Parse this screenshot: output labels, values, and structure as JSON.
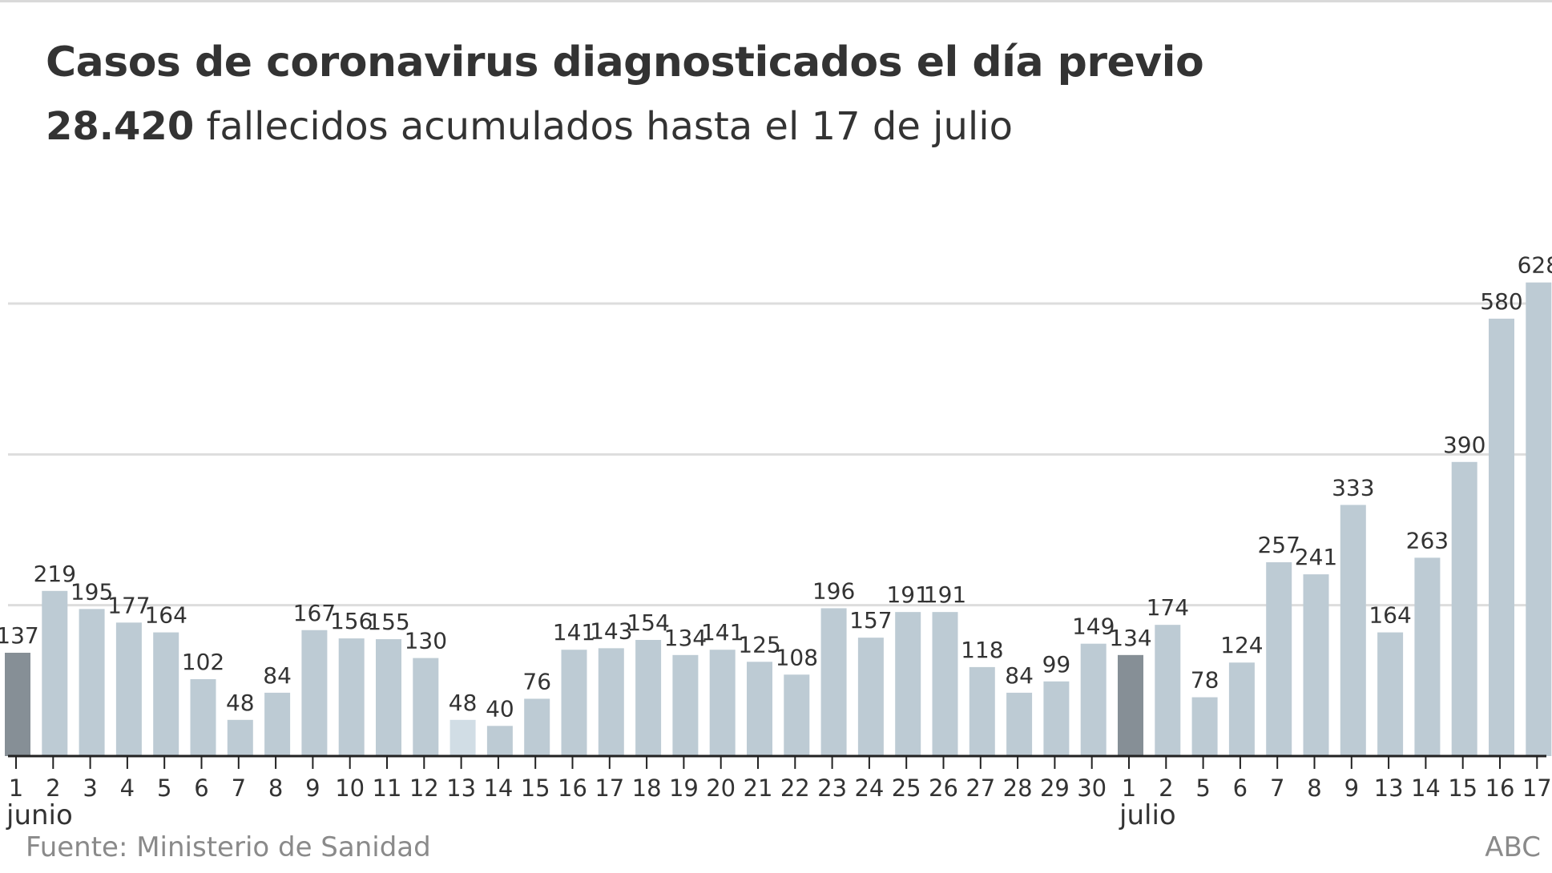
{
  "title": "Casos de coronavirus diagnosticados el día previo",
  "subtitle": {
    "bold_value": "28.420",
    "text": " fallecidos acumulados hasta el 17 de julio"
  },
  "source": "Fuente: Ministerio de Sanidad",
  "credit": "ABC",
  "colors": {
    "bar": "#bdcbd4",
    "bar_highlight": "#868f96",
    "bar_light": "#d1dde5",
    "grid": "#dddddd",
    "axis": "#222222",
    "text": "#333333",
    "muted": "#8a8a8a"
  },
  "chart_data": {
    "type": "bar",
    "title": "Casos de coronavirus diagnosticados el día previo",
    "categories": [
      "1",
      "2",
      "3",
      "4",
      "5",
      "6",
      "7",
      "8",
      "9",
      "10",
      "11",
      "12",
      "13",
      "14",
      "15",
      "16",
      "17",
      "18",
      "19",
      "20",
      "21",
      "22",
      "23",
      "24",
      "25",
      "26",
      "27",
      "28",
      "29",
      "30",
      "1",
      "2",
      "5",
      "6",
      "7",
      "8",
      "9",
      "13",
      "14",
      "15",
      "16",
      "17"
    ],
    "values": [
      137,
      219,
      195,
      177,
      164,
      102,
      48,
      84,
      167,
      156,
      155,
      130,
      48,
      40,
      76,
      141,
      143,
      154,
      134,
      141,
      125,
      108,
      196,
      157,
      191,
      191,
      118,
      84,
      99,
      149,
      134,
      174,
      78,
      124,
      257,
      241,
      333,
      164,
      263,
      390,
      580,
      628
    ],
    "styles": [
      "dark",
      "normal",
      "normal",
      "normal",
      "normal",
      "normal",
      "normal",
      "normal",
      "normal",
      "normal",
      "normal",
      "normal",
      "light",
      "normal",
      "normal",
      "normal",
      "normal",
      "normal",
      "normal",
      "normal",
      "normal",
      "normal",
      "normal",
      "normal",
      "normal",
      "normal",
      "normal",
      "normal",
      "normal",
      "normal",
      "dark",
      "normal",
      "normal",
      "normal",
      "normal",
      "normal",
      "normal",
      "normal",
      "normal",
      "normal",
      "normal",
      "normal"
    ],
    "month_labels": [
      {
        "label": "junio",
        "index": 0
      },
      {
        "label": "julio",
        "index": 30
      }
    ],
    "ylim": [
      0,
      640
    ],
    "gridlines": [
      0,
      200,
      400,
      600
    ],
    "grid": true,
    "legend": "none",
    "xlabel": "",
    "ylabel": ""
  }
}
